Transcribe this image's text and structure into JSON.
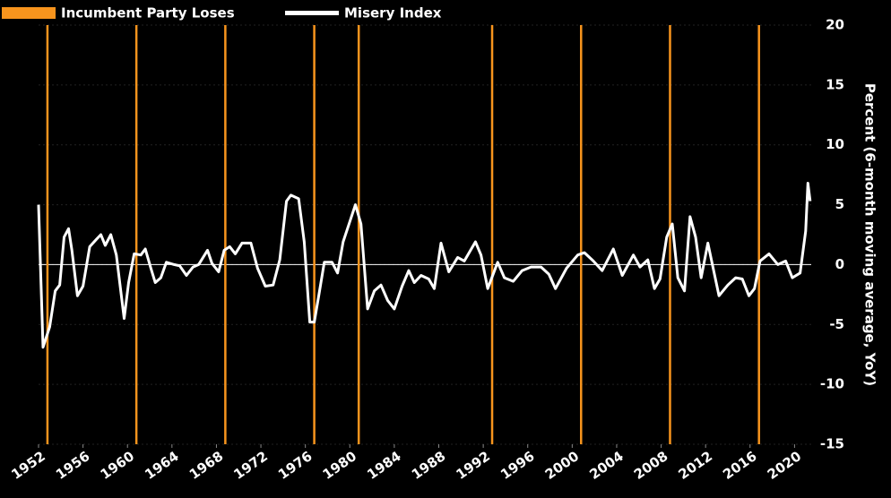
{
  "chart_data": {
    "type": "line",
    "y_label": "Percent (6-month moving average, YoY)",
    "x": [
      1952.0,
      1952.4,
      1953.0,
      1953.5,
      1953.9,
      1954.3,
      1954.7,
      1955.0,
      1955.5,
      1956.0,
      1956.6,
      1957.2,
      1957.6,
      1958.0,
      1958.5,
      1959.0,
      1959.7,
      1960.1,
      1960.6,
      1961.2,
      1961.6,
      1962.1,
      1962.5,
      1963.0,
      1963.5,
      1964.2,
      1964.7,
      1965.3,
      1965.9,
      1966.4,
      1967.2,
      1967.6,
      1968.2,
      1968.7,
      1969.2,
      1969.7,
      1970.3,
      1971.1,
      1971.7,
      1972.4,
      1973.1,
      1973.7,
      1974.3,
      1974.7,
      1975.4,
      1975.9,
      1976.4,
      1976.8,
      1977.2,
      1977.7,
      1978.4,
      1978.9,
      1979.4,
      1980.0,
      1980.5,
      1981.0,
      1981.6,
      1982.2,
      1982.8,
      1983.4,
      1984.0,
      1984.7,
      1985.3,
      1985.8,
      1986.4,
      1987.1,
      1987.6,
      1988.2,
      1988.9,
      1989.7,
      1990.3,
      1991.3,
      1991.8,
      1992.4,
      1993.3,
      1993.9,
      1994.7,
      1995.5,
      1996.3,
      1997.2,
      1997.9,
      1998.5,
      1999.5,
      2000.5,
      2001.1,
      2001.9,
      2002.7,
      2003.7,
      2004.5,
      2005.5,
      2006.1,
      2006.8,
      2007.4,
      2007.9,
      2008.5,
      2009.0,
      2009.5,
      2010.1,
      2010.6,
      2011.1,
      2011.6,
      2012.2,
      2013.2,
      2014.0,
      2014.7,
      2015.3,
      2015.9,
      2016.4,
      2016.9,
      2017.7,
      2018.5,
      2019.2,
      2019.8,
      2020.5,
      2021.0,
      2021.2,
      2021.4
    ],
    "series": [
      {
        "name": "Misery Index",
        "color": "#ffffff",
        "values": [
          5.0,
          -6.9,
          -5.2,
          -2.2,
          -1.7,
          2.3,
          3.0,
          1.2,
          -2.6,
          -1.8,
          1.5,
          2.1,
          2.5,
          1.6,
          2.5,
          0.8,
          -4.5,
          -1.5,
          0.9,
          0.8,
          1.3,
          -0.3,
          -1.5,
          -1.1,
          0.2,
          0,
          -0.1,
          -0.9,
          -0.2,
          0,
          1.2,
          0.1,
          -0.6,
          1.2,
          1.5,
          0.9,
          1.8,
          1.8,
          -0.3,
          -1.8,
          -1.7,
          0.4,
          5.3,
          5.8,
          5.5,
          1.9,
          -4.8,
          -4.8,
          -2.6,
          0.2,
          0.2,
          -0.7,
          1.9,
          3.6,
          5.0,
          3.4,
          -3.7,
          -2.2,
          -1.7,
          -3.0,
          -3.7,
          -1.8,
          -0.5,
          -1.5,
          -0.9,
          -1.2,
          -2.0,
          1.8,
          -0.6,
          0.6,
          0.3,
          1.9,
          0.8,
          -2.0,
          0.2,
          -1.1,
          -1.4,
          -0.5,
          -0.2,
          -0.2,
          -0.8,
          -2.0,
          -0.3,
          0.8,
          1.0,
          0.3,
          -0.5,
          1.3,
          -0.9,
          0.8,
          -0.2,
          0.4,
          -2.0,
          -1.2,
          2.3,
          3.4,
          -1.1,
          -2.2,
          4.0,
          2.3,
          -1.1,
          1.8,
          -2.6,
          -1.7,
          -1.1,
          -1.2,
          -2.6,
          -2.0,
          0.3,
          0.9,
          0,
          0.3,
          -1.1,
          -0.7,
          2.8,
          6.8,
          5.3
        ]
      }
    ],
    "events": {
      "name": "Incumbent Party Loses",
      "color": "#f7941d",
      "x": [
        1952.8,
        1960.8,
        1968.8,
        1976.8,
        1980.8,
        1992.8,
        2000.8,
        2008.8,
        2016.8
      ]
    },
    "xlim": [
      1952,
      2021.5
    ],
    "xticks": [
      1952,
      1956,
      1960,
      1964,
      1968,
      1972,
      1976,
      1980,
      1984,
      1988,
      1992,
      1996,
      2000,
      2004,
      2008,
      2012,
      2016,
      2020
    ],
    "ylim": [
      -15,
      20
    ],
    "yticks": [
      -15,
      -10,
      -5,
      0,
      5,
      10,
      15,
      20
    ],
    "grid": true,
    "zero_line": true,
    "y_axis_side": "right",
    "legend": "top-left"
  }
}
